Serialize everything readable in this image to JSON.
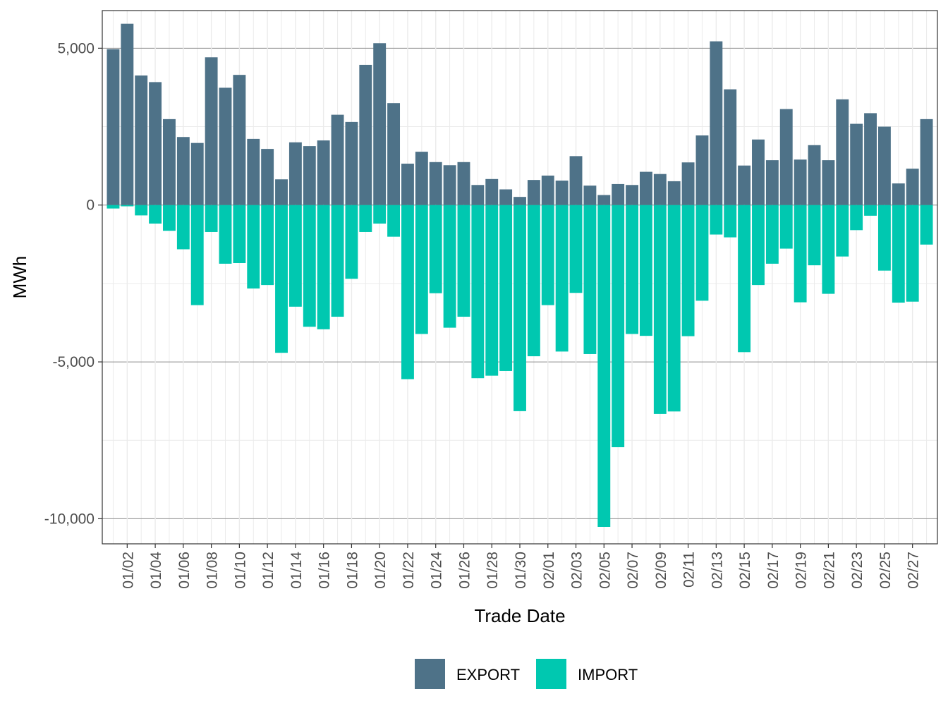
{
  "chart_data": {
    "type": "bar",
    "stacked": true,
    "title": "",
    "xlabel": "Trade Date",
    "ylabel": "MWh",
    "ylim": [
      -10800,
      6200
    ],
    "yticks": [
      {
        "value": 5000,
        "label": "5,000"
      },
      {
        "value": 0,
        "label": "0"
      },
      {
        "value": -5000,
        "label": "-5,000"
      },
      {
        "value": -10000,
        "label": "-10,000"
      }
    ],
    "categories": [
      "01/01",
      "01/02",
      "01/03",
      "01/04",
      "01/05",
      "01/06",
      "01/07",
      "01/08",
      "01/09",
      "01/10",
      "01/11",
      "01/12",
      "01/13",
      "01/14",
      "01/15",
      "01/16",
      "01/17",
      "01/18",
      "01/19",
      "01/20",
      "01/21",
      "01/22",
      "01/23",
      "01/24",
      "01/25",
      "01/26",
      "01/27",
      "01/28",
      "01/29",
      "01/30",
      "01/31",
      "02/01",
      "02/02",
      "02/03",
      "02/04",
      "02/05",
      "02/06",
      "02/07",
      "02/08",
      "02/09",
      "02/10",
      "02/11",
      "02/12",
      "02/13",
      "02/14",
      "02/15",
      "02/16",
      "02/17",
      "02/18",
      "02/19",
      "02/20",
      "02/21",
      "02/22",
      "02/23",
      "02/24",
      "02/25",
      "02/26",
      "02/27",
      "02/28"
    ],
    "x_tick_labels": [
      "01/02",
      "01/04",
      "01/06",
      "01/08",
      "01/10",
      "01/12",
      "01/14",
      "01/16",
      "01/18",
      "01/20",
      "01/22",
      "01/24",
      "01/26",
      "01/28",
      "01/30",
      "02/01",
      "02/03",
      "02/05",
      "02/07",
      "02/09",
      "02/11",
      "02/13",
      "02/15",
      "02/17",
      "02/19",
      "02/21",
      "02/23",
      "02/25",
      "02/27"
    ],
    "series": [
      {
        "name": "EXPORT",
        "color": "#4e7288",
        "values": [
          4970,
          5780,
          4130,
          3920,
          2740,
          2170,
          1980,
          4710,
          3740,
          4150,
          2110,
          1790,
          820,
          2000,
          1880,
          2060,
          2880,
          2650,
          4470,
          5160,
          3250,
          1320,
          1700,
          1370,
          1270,
          1370,
          640,
          830,
          500,
          260,
          800,
          940,
          780,
          1560,
          620,
          320,
          670,
          640,
          1060,
          990,
          760,
          1360,
          2220,
          5220,
          3690,
          1260,
          2090,
          1430,
          3060,
          1450,
          1910,
          1430,
          3370,
          2590,
          2930,
          2500,
          690,
          1160,
          2740
        ]
      },
      {
        "name": "IMPORT",
        "color": "#00c8b0",
        "values": [
          -110,
          -40,
          -330,
          -590,
          -820,
          -1410,
          -3190,
          -860,
          -1870,
          -1850,
          -2660,
          -2550,
          -4710,
          -3240,
          -3880,
          -3960,
          -3560,
          -2350,
          -860,
          -590,
          -1010,
          -5550,
          -4110,
          -2810,
          -3910,
          -3560,
          -5520,
          -5440,
          -5290,
          -6570,
          -4820,
          -3190,
          -4670,
          -2800,
          -4750,
          -10260,
          -7720,
          -4110,
          -4170,
          -6660,
          -6580,
          -4180,
          -3050,
          -940,
          -1030,
          -4690,
          -2550,
          -1870,
          -1390,
          -3100,
          -1920,
          -2830,
          -1640,
          -800,
          -340,
          -2090,
          -3110,
          -3080,
          -1260
        ]
      }
    ],
    "legend": {
      "position": "bottom",
      "items": [
        "EXPORT",
        "IMPORT"
      ]
    }
  }
}
